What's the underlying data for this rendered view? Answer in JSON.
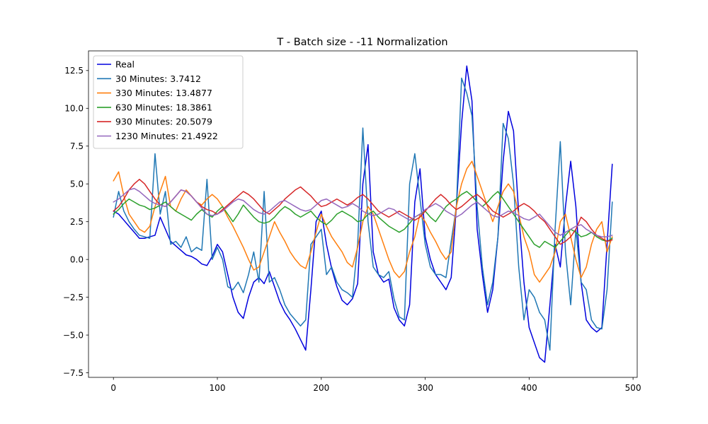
{
  "chart_data": {
    "type": "line",
    "title": "T - Batch size - -11 Normalization",
    "xlabel": "",
    "ylabel": "",
    "xlim": [
      -24,
      504
    ],
    "ylim": [
      -7.8,
      13.8
    ],
    "xticks": [
      0,
      100,
      200,
      300,
      400,
      500
    ],
    "xtick_labels": [
      "0",
      "100",
      "200",
      "300",
      "400",
      "500"
    ],
    "yticks": [
      -7.5,
      -5.0,
      -2.5,
      0.0,
      2.5,
      5.0,
      7.5,
      10.0,
      12.5
    ],
    "ytick_labels": [
      "−7.5",
      "−5.0",
      "−2.5",
      "0.0",
      "2.5",
      "5.0",
      "7.5",
      "10.0",
      "12.5"
    ],
    "grid": false,
    "legend_position": "top-left",
    "series": [
      {
        "name": "Real",
        "color": "#0000dd",
        "x": [
          0,
          5,
          10,
          15,
          20,
          25,
          30,
          35,
          40,
          45,
          50,
          55,
          60,
          65,
          70,
          75,
          80,
          85,
          90,
          95,
          100,
          105,
          110,
          115,
          120,
          125,
          130,
          135,
          140,
          145,
          150,
          155,
          160,
          165,
          170,
          175,
          180,
          185,
          190,
          195,
          200,
          205,
          210,
          215,
          220,
          225,
          230,
          235,
          240,
          245,
          250,
          255,
          260,
          265,
          270,
          275,
          280,
          285,
          290,
          295,
          300,
          305,
          310,
          315,
          320,
          325,
          330,
          335,
          340,
          345,
          350,
          355,
          360,
          365,
          370,
          375,
          380,
          385,
          390,
          395,
          400,
          405,
          410,
          415,
          420,
          425,
          430,
          435,
          440,
          445,
          450,
          455,
          460,
          465,
          470,
          475,
          480
        ],
        "values": [
          3.2,
          3.0,
          2.6,
          2.2,
          1.8,
          1.4,
          1.4,
          1.5,
          1.6,
          2.8,
          2.0,
          1.2,
          0.9,
          0.6,
          0.3,
          0.2,
          0.0,
          -0.3,
          -0.4,
          0.2,
          1.0,
          0.5,
          -1.0,
          -2.5,
          -3.5,
          -3.9,
          -2.5,
          -1.5,
          -1.2,
          -1.6,
          -0.8,
          -1.8,
          -2.8,
          -3.5,
          -4.0,
          -4.6,
          -5.3,
          -6.0,
          -2.0,
          2.5,
          3.2,
          1.0,
          -0.6,
          -1.8,
          -2.7,
          -3.0,
          -2.6,
          -1.6,
          5.0,
          7.6,
          0.5,
          -1.0,
          -1.5,
          -1.3,
          -3.2,
          -4.0,
          -4.4,
          -3.0,
          3.8,
          6.0,
          1.5,
          0.0,
          -1.0,
          -1.5,
          -2.0,
          -1.2,
          3.5,
          9.0,
          12.8,
          10.5,
          2.0,
          -1.0,
          -3.5,
          -2.0,
          1.5,
          6.5,
          9.8,
          8.5,
          3.0,
          -1.5,
          -4.5,
          -5.5,
          -6.5,
          -6.8,
          -3.0,
          1.0,
          -0.5,
          3.5,
          6.5,
          3.5,
          -1.5,
          -4.0,
          -4.5,
          -4.8,
          -4.5,
          1.0,
          6.3
        ]
      },
      {
        "name": "30 Minutes: 3.7412",
        "color": "#1f77b4",
        "x": [
          0,
          5,
          10,
          15,
          20,
          25,
          30,
          35,
          40,
          45,
          50,
          55,
          60,
          65,
          70,
          75,
          80,
          85,
          90,
          95,
          100,
          105,
          110,
          115,
          120,
          125,
          130,
          135,
          140,
          145,
          150,
          155,
          160,
          165,
          170,
          175,
          180,
          185,
          190,
          195,
          200,
          205,
          210,
          215,
          220,
          225,
          230,
          235,
          240,
          245,
          250,
          255,
          260,
          265,
          270,
          275,
          280,
          285,
          290,
          295,
          300,
          305,
          310,
          315,
          320,
          325,
          330,
          335,
          340,
          345,
          350,
          355,
          360,
          365,
          370,
          375,
          380,
          385,
          390,
          395,
          400,
          405,
          410,
          415,
          420,
          425,
          430,
          435,
          440,
          445,
          450,
          455,
          460,
          465,
          470,
          475,
          480
        ],
        "values": [
          2.8,
          4.5,
          3.2,
          2.5,
          2.0,
          1.6,
          1.5,
          1.4,
          7.0,
          3.0,
          4.5,
          1.0,
          1.2,
          0.8,
          1.5,
          0.5,
          0.8,
          0.6,
          5.3,
          0.0,
          0.8,
          0.0,
          -1.8,
          -2.0,
          -1.5,
          -2.2,
          -1.0,
          0.5,
          -1.5,
          4.5,
          -1.5,
          -1.2,
          -2.0,
          -3.0,
          -3.6,
          -4.0,
          -4.4,
          -4.0,
          1.0,
          1.5,
          2.0,
          -1.0,
          -0.5,
          -1.5,
          -2.0,
          -2.2,
          -2.5,
          1.0,
          8.7,
          2.5,
          -0.5,
          -1.0,
          -1.2,
          -0.8,
          -2.6,
          -3.8,
          -4.0,
          5.0,
          7.0,
          4.0,
          1.0,
          -0.5,
          -1.0,
          -1.0,
          -1.2,
          1.2,
          3.5,
          12.0,
          11.0,
          9.5,
          3.5,
          -0.5,
          -3.0,
          -1.5,
          1.5,
          9.0,
          8.0,
          5.0,
          -0.5,
          -4.0,
          -2.0,
          -2.5,
          -3.5,
          -4.0,
          -6.0,
          2.0,
          7.8,
          0.5,
          -3.0,
          2.0,
          -1.5,
          -2.0,
          -4.0,
          -4.5,
          -4.6,
          -2.0,
          3.8
        ]
      },
      {
        "name": "330 Minutes: 13.4877",
        "color": "#ff7f0e",
        "x": [
          0,
          5,
          10,
          15,
          20,
          25,
          30,
          35,
          40,
          45,
          50,
          55,
          60,
          65,
          70,
          75,
          80,
          85,
          90,
          95,
          100,
          105,
          110,
          115,
          120,
          125,
          130,
          135,
          140,
          145,
          150,
          155,
          160,
          165,
          170,
          175,
          180,
          185,
          190,
          195,
          200,
          205,
          210,
          215,
          220,
          225,
          230,
          235,
          240,
          245,
          250,
          255,
          260,
          265,
          270,
          275,
          280,
          285,
          290,
          295,
          300,
          305,
          310,
          315,
          320,
          325,
          330,
          335,
          340,
          345,
          350,
          355,
          360,
          365,
          370,
          375,
          380,
          385,
          390,
          395,
          400,
          405,
          410,
          415,
          420,
          425,
          430,
          435,
          440,
          445,
          450,
          455,
          460,
          465,
          470,
          475,
          480
        ],
        "values": [
          5.2,
          5.8,
          4.2,
          3.0,
          2.5,
          2.0,
          1.8,
          2.2,
          3.5,
          4.5,
          5.5,
          3.5,
          3.2,
          4.0,
          4.6,
          4.2,
          3.8,
          3.6,
          4.0,
          4.3,
          4.0,
          3.5,
          2.8,
          2.2,
          1.5,
          0.8,
          0.0,
          -0.7,
          -0.5,
          0.5,
          1.5,
          2.5,
          1.8,
          1.2,
          0.5,
          0.0,
          -0.4,
          -0.6,
          0.5,
          1.8,
          3.0,
          2.2,
          1.5,
          1.0,
          0.5,
          -0.2,
          -0.5,
          0.8,
          2.5,
          3.5,
          3.0,
          2.0,
          1.0,
          0.0,
          -0.8,
          -1.2,
          -0.8,
          0.5,
          1.5,
          3.0,
          2.5,
          1.8,
          1.2,
          0.5,
          0.0,
          0.5,
          3.5,
          5.0,
          6.0,
          6.5,
          5.5,
          4.5,
          3.5,
          2.5,
          3.5,
          4.5,
          5.0,
          4.5,
          3.0,
          1.5,
          0.5,
          -1.0,
          -1.5,
          -1.0,
          -0.5,
          0.5,
          2.5,
          3.0,
          1.5,
          0.0,
          -1.2,
          -0.5,
          1.0,
          2.0,
          2.5,
          0.5,
          1.5
        ]
      },
      {
        "name": "630 Minutes: 18.3861",
        "color": "#2ca02c",
        "x": [
          0,
          5,
          10,
          15,
          20,
          25,
          30,
          35,
          40,
          45,
          50,
          55,
          60,
          65,
          70,
          75,
          80,
          85,
          90,
          95,
          100,
          105,
          110,
          115,
          120,
          125,
          130,
          135,
          140,
          145,
          150,
          155,
          160,
          165,
          170,
          175,
          180,
          185,
          190,
          195,
          200,
          205,
          210,
          215,
          220,
          225,
          230,
          235,
          240,
          245,
          250,
          255,
          260,
          265,
          270,
          275,
          280,
          285,
          290,
          295,
          300,
          305,
          310,
          315,
          320,
          325,
          330,
          335,
          340,
          345,
          350,
          355,
          360,
          365,
          370,
          375,
          380,
          385,
          390,
          395,
          400,
          405,
          410,
          415,
          420,
          425,
          430,
          435,
          440,
          445,
          450,
          455,
          460,
          465,
          470,
          475,
          480
        ],
        "values": [
          3.0,
          3.3,
          3.7,
          4.0,
          3.8,
          3.6,
          3.5,
          3.3,
          3.4,
          3.6,
          3.8,
          3.5,
          3.2,
          3.0,
          2.8,
          2.6,
          3.0,
          3.3,
          3.0,
          2.8,
          3.2,
          3.5,
          3.0,
          2.5,
          3.0,
          3.6,
          3.2,
          2.8,
          2.5,
          2.4,
          2.5,
          2.8,
          3.2,
          3.5,
          3.3,
          3.0,
          2.8,
          3.0,
          3.2,
          2.8,
          2.5,
          2.3,
          2.6,
          3.0,
          3.2,
          3.0,
          2.8,
          2.5,
          2.6,
          3.0,
          3.2,
          2.8,
          2.5,
          2.2,
          2.0,
          1.8,
          2.0,
          2.4,
          2.8,
          3.0,
          3.2,
          2.8,
          2.5,
          3.0,
          3.5,
          3.8,
          4.0,
          4.3,
          4.5,
          4.2,
          3.8,
          3.5,
          3.8,
          4.2,
          4.5,
          4.0,
          3.5,
          3.0,
          2.5,
          2.0,
          1.5,
          1.0,
          0.8,
          1.2,
          1.0,
          0.8,
          1.2,
          1.6,
          2.0,
          1.8,
          1.5,
          1.6,
          1.8,
          1.5,
          1.3,
          1.2,
          1.4
        ]
      },
      {
        "name": "930 Minutes: 20.5079",
        "color": "#d62728",
        "x": [
          0,
          5,
          10,
          15,
          20,
          25,
          30,
          35,
          40,
          45,
          50,
          55,
          60,
          65,
          70,
          75,
          80,
          85,
          90,
          95,
          100,
          105,
          110,
          115,
          120,
          125,
          130,
          135,
          140,
          145,
          150,
          155,
          160,
          165,
          170,
          175,
          180,
          185,
          190,
          195,
          200,
          205,
          210,
          215,
          220,
          225,
          230,
          235,
          240,
          245,
          250,
          255,
          260,
          265,
          270,
          275,
          280,
          285,
          290,
          295,
          300,
          305,
          310,
          315,
          320,
          325,
          330,
          335,
          340,
          345,
          350,
          355,
          360,
          365,
          370,
          375,
          380,
          385,
          390,
          395,
          400,
          405,
          410,
          415,
          420,
          425,
          430,
          435,
          440,
          445,
          450,
          455,
          460,
          465,
          470,
          475,
          480
        ],
        "values": [
          3.2,
          3.5,
          4.0,
          4.6,
          5.0,
          5.3,
          5.0,
          4.5,
          4.0,
          3.6,
          3.5,
          3.8,
          4.2,
          4.6,
          4.5,
          4.2,
          3.8,
          3.5,
          3.3,
          3.2,
          3.0,
          3.3,
          3.6,
          3.9,
          4.2,
          4.5,
          4.3,
          4.0,
          3.6,
          3.2,
          3.0,
          3.3,
          3.6,
          4.0,
          4.3,
          4.6,
          4.8,
          4.5,
          4.2,
          3.8,
          3.5,
          3.6,
          3.8,
          4.0,
          3.8,
          3.6,
          3.8,
          4.1,
          4.3,
          4.0,
          3.6,
          3.2,
          3.0,
          2.8,
          3.0,
          3.2,
          3.0,
          2.8,
          2.6,
          2.8,
          3.2,
          3.6,
          4.0,
          4.3,
          4.0,
          3.6,
          3.3,
          3.5,
          3.8,
          4.1,
          4.3,
          4.0,
          3.6,
          3.2,
          3.0,
          2.8,
          3.0,
          3.2,
          3.5,
          3.7,
          3.5,
          3.2,
          2.8,
          2.5,
          2.0,
          1.5,
          1.0,
          1.2,
          1.5,
          2.0,
          2.8,
          2.5,
          2.0,
          1.6,
          1.4,
          1.2,
          1.3
        ]
      },
      {
        "name": "1230 Minutes: 21.4922",
        "color": "#9467bd",
        "x": [
          0,
          5,
          10,
          15,
          20,
          25,
          30,
          35,
          40,
          45,
          50,
          55,
          60,
          65,
          70,
          75,
          80,
          85,
          90,
          95,
          100,
          105,
          110,
          115,
          120,
          125,
          130,
          135,
          140,
          145,
          150,
          155,
          160,
          165,
          170,
          175,
          180,
          185,
          190,
          195,
          200,
          205,
          210,
          215,
          220,
          225,
          230,
          235,
          240,
          245,
          250,
          255,
          260,
          265,
          270,
          275,
          280,
          285,
          290,
          295,
          300,
          305,
          310,
          315,
          320,
          325,
          330,
          335,
          340,
          345,
          350,
          355,
          360,
          365,
          370,
          375,
          380,
          385,
          390,
          395,
          400,
          405,
          410,
          415,
          420,
          425,
          430,
          435,
          440,
          445,
          450,
          455,
          460,
          465,
          470,
          475,
          480
        ],
        "values": [
          3.8,
          4.0,
          4.3,
          4.6,
          4.7,
          4.5,
          4.2,
          3.9,
          3.7,
          3.6,
          3.5,
          3.8,
          4.2,
          4.6,
          4.5,
          4.2,
          3.8,
          3.4,
          3.0,
          2.9,
          3.0,
          3.2,
          3.5,
          3.8,
          4.0,
          3.9,
          3.6,
          3.3,
          3.1,
          3.0,
          3.2,
          3.5,
          3.8,
          3.9,
          3.7,
          3.5,
          3.3,
          3.2,
          3.3,
          3.6,
          3.9,
          4.0,
          3.8,
          3.6,
          3.4,
          3.5,
          3.7,
          3.5,
          3.2,
          3.0,
          2.9,
          3.0,
          3.2,
          3.4,
          3.3,
          3.0,
          2.8,
          2.6,
          2.8,
          3.0,
          3.3,
          3.5,
          3.7,
          3.5,
          3.2,
          3.0,
          2.8,
          3.0,
          3.3,
          3.6,
          3.8,
          3.5,
          3.2,
          2.9,
          2.8,
          3.0,
          3.2,
          3.1,
          2.9,
          2.7,
          2.6,
          2.8,
          3.0,
          2.6,
          2.2,
          1.8,
          1.6,
          1.8,
          2.0,
          2.2,
          2.3,
          2.0,
          1.8,
          1.6,
          1.5,
          1.5,
          1.6
        ]
      }
    ]
  }
}
